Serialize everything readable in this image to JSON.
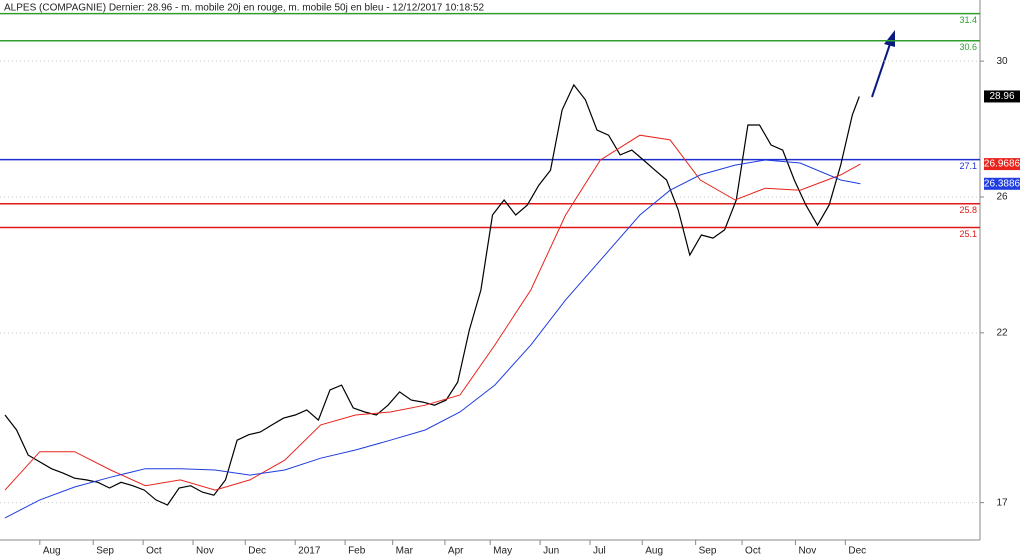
{
  "chart_data": {
    "type": "line",
    "title": "ALPES (COMPAGNIE) Dernier: 28.96 - m. mobile 20j en rouge, m. mobile 50j en bleu - 12/12/2017 10:18:52",
    "xlim": [
      0,
      84
    ],
    "xticks": [
      {
        "value": 3,
        "label": "Aug"
      },
      {
        "value": 7.6,
        "label": "Sep"
      },
      {
        "value": 11.9,
        "label": "Oct"
      },
      {
        "value": 16.2,
        "label": "Nov"
      },
      {
        "value": 20.7,
        "label": "Dec"
      },
      {
        "value": 25,
        "label": "2017"
      },
      {
        "value": 29.3,
        "label": "Feb"
      },
      {
        "value": 33.4,
        "label": "Mar"
      },
      {
        "value": 37.9,
        "label": "Apr"
      },
      {
        "value": 41.8,
        "label": "May"
      },
      {
        "value": 46.1,
        "label": "Jun"
      },
      {
        "value": 50.4,
        "label": "Jul"
      },
      {
        "value": 54.9,
        "label": "Aug"
      },
      {
        "value": 59.5,
        "label": "Sep"
      },
      {
        "value": 63.5,
        "label": "Oct"
      },
      {
        "value": 68.1,
        "label": "Nov"
      },
      {
        "value": 72.4,
        "label": "Dec"
      }
    ],
    "ylim": [
      15.9,
      31.8
    ],
    "yticks": [
      17,
      22,
      26,
      30
    ],
    "grid": true,
    "series": [
      {
        "color": "#000000",
        "x": [
          0,
          1,
          2,
          3,
          4,
          5,
          6,
          7,
          8,
          9,
          10,
          11,
          12,
          13,
          14,
          15,
          16,
          17,
          18,
          19,
          20,
          21,
          22,
          23,
          24,
          25,
          26,
          27,
          28,
          29,
          30,
          31,
          32,
          33,
          34,
          35,
          36,
          37,
          38,
          39,
          40,
          41,
          42,
          43,
          44,
          45,
          46,
          47,
          48,
          49,
          50,
          51,
          52,
          53,
          54,
          55,
          56,
          57,
          58,
          59,
          60,
          61,
          62,
          63,
          64,
          65,
          66,
          67,
          68,
          69,
          70,
          71,
          72,
          73,
          73.6
        ],
        "values": [
          19.58,
          19.14,
          18.4,
          18.2,
          18.0,
          17.87,
          17.72,
          17.67,
          17.6,
          17.43,
          17.6,
          17.5,
          17.37,
          17.08,
          16.93,
          17.43,
          17.5,
          17.31,
          17.22,
          17.67,
          18.84,
          19.0,
          19.08,
          19.29,
          19.49,
          19.58,
          19.73,
          19.43,
          20.32,
          20.46,
          19.79,
          19.67,
          19.58,
          19.87,
          20.26,
          20.02,
          19.96,
          19.87,
          20.02,
          20.55,
          22.08,
          23.26,
          25.47,
          25.91,
          25.47,
          25.76,
          26.35,
          26.79,
          28.56,
          29.3,
          28.86,
          27.97,
          27.82,
          27.24,
          27.38,
          27.09,
          26.79,
          26.5,
          25.62,
          24.29,
          24.88,
          24.79,
          25.03,
          25.91,
          28.12,
          28.12,
          27.53,
          27.38,
          26.5,
          25.76,
          25.17,
          25.76,
          26.94,
          28.41,
          28.96
        ],
        "label_bg": "#000000"
      },
      {
        "color": "#e8241c",
        "x": [
          0,
          3.0,
          6.0,
          9.1,
          12.1,
          15.1,
          18.1,
          21.1,
          24.1,
          27.2,
          30.2,
          33.2,
          36.2,
          39.2,
          42.2,
          45.3,
          48.3,
          51.3,
          54.7,
          57.3,
          59.9,
          62.9,
          65.5,
          68.5,
          72.0,
          73.7
        ],
        "values": [
          17.37,
          18.5,
          18.5,
          17.96,
          17.5,
          17.67,
          17.37,
          17.67,
          18.25,
          19.29,
          19.58,
          19.67,
          19.87,
          20.17,
          21.64,
          23.26,
          25.47,
          27.09,
          27.82,
          27.68,
          26.5,
          25.91,
          26.26,
          26.2,
          26.65,
          26.9686
        ],
        "label_bg": "#e8241c"
      },
      {
        "color": "#1f3de0",
        "x": [
          0,
          3.0,
          6.0,
          9.1,
          12.1,
          15.1,
          18.1,
          21.1,
          24.1,
          27.2,
          30.2,
          33.2,
          36.2,
          39.2,
          42.2,
          45.3,
          48.3,
          51.3,
          54.7,
          57.3,
          59.9,
          62.9,
          65.5,
          68.5,
          72.0,
          73.7
        ],
        "values": [
          16.55,
          17.08,
          17.46,
          17.75,
          18.0,
          18.0,
          17.96,
          17.81,
          17.96,
          18.31,
          18.55,
          18.84,
          19.14,
          19.67,
          20.46,
          21.64,
          22.97,
          24.14,
          25.47,
          26.2,
          26.65,
          26.94,
          27.09,
          27.0,
          26.5,
          26.3886
        ],
        "label_bg": "#1f3de0"
      }
    ],
    "levels": [
      {
        "value": 31.4,
        "color": "#2f9e2f"
      },
      {
        "value": 30.6,
        "color": "#2f9e2f"
      },
      {
        "value": 27.1,
        "color": "#1f2fd0"
      },
      {
        "value": 25.8,
        "color": "#e01818"
      },
      {
        "value": 25.1,
        "color": "#e01818"
      }
    ]
  }
}
